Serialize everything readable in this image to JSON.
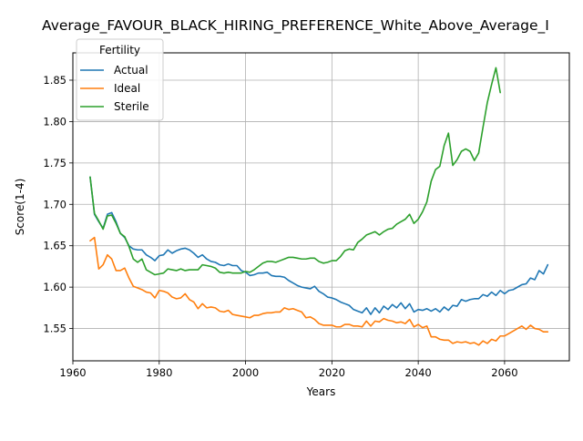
{
  "chart_data": {
    "type": "line",
    "title": "Average_FAVOUR_BLACK_HIRING_PREFERENCE_White_Above_Average_I",
    "xlabel": "Years",
    "ylabel": "Score(1-4)",
    "xlim": [
      1960,
      2075
    ],
    "ylim": [
      1.511,
      1.883
    ],
    "xticks": [
      1960,
      1980,
      2000,
      2020,
      2040,
      2060
    ],
    "yticks": [
      1.55,
      1.6,
      1.65,
      1.7,
      1.75,
      1.8,
      1.85
    ],
    "grid": true,
    "legend": {
      "title": "Fertility",
      "position": "top-left"
    },
    "series": [
      {
        "name": "Actual",
        "color": "#1f77b4",
        "points": [
          [
            1964,
            1.733
          ],
          [
            1965,
            1.688
          ],
          [
            1966,
            1.679
          ],
          [
            1967,
            1.671
          ],
          [
            1968,
            1.688
          ],
          [
            1969,
            1.69
          ],
          [
            1970,
            1.679
          ],
          [
            1971,
            1.665
          ],
          [
            1972,
            1.66
          ],
          [
            1973,
            1.65
          ],
          [
            1974,
            1.646
          ],
          [
            1975,
            1.645
          ],
          [
            1976,
            1.645
          ],
          [
            1977,
            1.639
          ],
          [
            1978,
            1.636
          ],
          [
            1979,
            1.632
          ],
          [
            1980,
            1.638
          ],
          [
            1981,
            1.639
          ],
          [
            1982,
            1.645
          ],
          [
            1983,
            1.641
          ],
          [
            1984,
            1.644
          ],
          [
            1985,
            1.646
          ],
          [
            1986,
            1.647
          ],
          [
            1987,
            1.645
          ],
          [
            1988,
            1.641
          ],
          [
            1989,
            1.636
          ],
          [
            1990,
            1.639
          ],
          [
            1991,
            1.634
          ],
          [
            1992,
            1.631
          ],
          [
            1993,
            1.63
          ],
          [
            1994,
            1.627
          ],
          [
            1995,
            1.626
          ],
          [
            1996,
            1.628
          ],
          [
            1997,
            1.626
          ],
          [
            1998,
            1.626
          ],
          [
            1999,
            1.62
          ],
          [
            2000,
            1.618
          ],
          [
            2001,
            1.614
          ],
          [
            2002,
            1.615
          ],
          [
            2003,
            1.617
          ],
          [
            2004,
            1.617
          ],
          [
            2005,
            1.618
          ],
          [
            2006,
            1.614
          ],
          [
            2007,
            1.613
          ],
          [
            2008,
            1.613
          ],
          [
            2009,
            1.612
          ],
          [
            2010,
            1.608
          ],
          [
            2011,
            1.605
          ],
          [
            2012,
            1.602
          ],
          [
            2013,
            1.6
          ],
          [
            2014,
            1.599
          ],
          [
            2015,
            1.598
          ],
          [
            2016,
            1.601
          ],
          [
            2017,
            1.595
          ],
          [
            2018,
            1.592
          ],
          [
            2019,
            1.588
          ],
          [
            2020,
            1.587
          ],
          [
            2021,
            1.585
          ],
          [
            2022,
            1.582
          ],
          [
            2023,
            1.58
          ],
          [
            2024,
            1.578
          ],
          [
            2025,
            1.573
          ],
          [
            2026,
            1.571
          ],
          [
            2027,
            1.569
          ],
          [
            2028,
            1.575
          ],
          [
            2029,
            1.567
          ],
          [
            2030,
            1.575
          ],
          [
            2031,
            1.569
          ],
          [
            2032,
            1.577
          ],
          [
            2033,
            1.573
          ],
          [
            2034,
            1.579
          ],
          [
            2035,
            1.575
          ],
          [
            2036,
            1.581
          ],
          [
            2037,
            1.574
          ],
          [
            2038,
            1.58
          ],
          [
            2039,
            1.57
          ],
          [
            2040,
            1.573
          ],
          [
            2041,
            1.572
          ],
          [
            2042,
            1.574
          ],
          [
            2043,
            1.571
          ],
          [
            2044,
            1.574
          ],
          [
            2045,
            1.57
          ],
          [
            2046,
            1.576
          ],
          [
            2047,
            1.572
          ],
          [
            2048,
            1.578
          ],
          [
            2049,
            1.577
          ],
          [
            2050,
            1.585
          ],
          [
            2051,
            1.583
          ],
          [
            2052,
            1.585
          ],
          [
            2053,
            1.586
          ],
          [
            2054,
            1.586
          ],
          [
            2055,
            1.591
          ],
          [
            2056,
            1.589
          ],
          [
            2057,
            1.594
          ],
          [
            2058,
            1.59
          ],
          [
            2059,
            1.596
          ],
          [
            2060,
            1.592
          ],
          [
            2061,
            1.596
          ],
          [
            2062,
            1.597
          ],
          [
            2063,
            1.6
          ],
          [
            2064,
            1.603
          ],
          [
            2065,
            1.604
          ],
          [
            2066,
            1.611
          ],
          [
            2067,
            1.609
          ],
          [
            2068,
            1.62
          ],
          [
            2069,
            1.616
          ],
          [
            2070,
            1.627
          ]
        ]
      },
      {
        "name": "Ideal",
        "color": "#ff7f0e",
        "points": [
          [
            1964,
            1.656
          ],
          [
            1965,
            1.66
          ],
          [
            1966,
            1.622
          ],
          [
            1967,
            1.627
          ],
          [
            1968,
            1.639
          ],
          [
            1969,
            1.634
          ],
          [
            1970,
            1.62
          ],
          [
            1971,
            1.62
          ],
          [
            1972,
            1.623
          ],
          [
            1973,
            1.611
          ],
          [
            1974,
            1.601
          ],
          [
            1975,
            1.599
          ],
          [
            1976,
            1.597
          ],
          [
            1977,
            1.594
          ],
          [
            1978,
            1.593
          ],
          [
            1979,
            1.587
          ],
          [
            1980,
            1.596
          ],
          [
            1981,
            1.595
          ],
          [
            1982,
            1.593
          ],
          [
            1983,
            1.588
          ],
          [
            1984,
            1.586
          ],
          [
            1985,
            1.587
          ],
          [
            1986,
            1.592
          ],
          [
            1987,
            1.585
          ],
          [
            1988,
            1.582
          ],
          [
            1989,
            1.574
          ],
          [
            1990,
            1.58
          ],
          [
            1991,
            1.575
          ],
          [
            1992,
            1.576
          ],
          [
            1993,
            1.575
          ],
          [
            1994,
            1.571
          ],
          [
            1995,
            1.57
          ],
          [
            1996,
            1.572
          ],
          [
            1997,
            1.567
          ],
          [
            1998,
            1.566
          ],
          [
            1999,
            1.565
          ],
          [
            2000,
            1.564
          ],
          [
            2001,
            1.563
          ],
          [
            2002,
            1.566
          ],
          [
            2003,
            1.566
          ],
          [
            2004,
            1.568
          ],
          [
            2005,
            1.569
          ],
          [
            2006,
            1.569
          ],
          [
            2007,
            1.57
          ],
          [
            2008,
            1.57
          ],
          [
            2009,
            1.575
          ],
          [
            2010,
            1.573
          ],
          [
            2011,
            1.574
          ],
          [
            2012,
            1.572
          ],
          [
            2013,
            1.57
          ],
          [
            2014,
            1.563
          ],
          [
            2015,
            1.564
          ],
          [
            2016,
            1.561
          ],
          [
            2017,
            1.556
          ],
          [
            2018,
            1.554
          ],
          [
            2019,
            1.554
          ],
          [
            2020,
            1.554
          ],
          [
            2021,
            1.552
          ],
          [
            2022,
            1.552
          ],
          [
            2023,
            1.555
          ],
          [
            2024,
            1.555
          ],
          [
            2025,
            1.553
          ],
          [
            2026,
            1.553
          ],
          [
            2027,
            1.552
          ],
          [
            2028,
            1.559
          ],
          [
            2029,
            1.553
          ],
          [
            2030,
            1.559
          ],
          [
            2031,
            1.558
          ],
          [
            2032,
            1.562
          ],
          [
            2033,
            1.56
          ],
          [
            2034,
            1.559
          ],
          [
            2035,
            1.557
          ],
          [
            2036,
            1.558
          ],
          [
            2037,
            1.556
          ],
          [
            2038,
            1.561
          ],
          [
            2039,
            1.552
          ],
          [
            2040,
            1.555
          ],
          [
            2041,
            1.551
          ],
          [
            2042,
            1.553
          ],
          [
            2043,
            1.54
          ],
          [
            2044,
            1.54
          ],
          [
            2045,
            1.537
          ],
          [
            2046,
            1.536
          ],
          [
            2047,
            1.536
          ],
          [
            2048,
            1.532
          ],
          [
            2049,
            1.534
          ],
          [
            2050,
            1.533
          ],
          [
            2051,
            1.534
          ],
          [
            2052,
            1.532
          ],
          [
            2053,
            1.533
          ],
          [
            2054,
            1.53
          ],
          [
            2055,
            1.535
          ],
          [
            2056,
            1.532
          ],
          [
            2057,
            1.537
          ],
          [
            2058,
            1.535
          ],
          [
            2059,
            1.541
          ],
          [
            2060,
            1.541
          ],
          [
            2061,
            1.544
          ],
          [
            2062,
            1.547
          ],
          [
            2063,
            1.55
          ],
          [
            2064,
            1.553
          ],
          [
            2065,
            1.549
          ],
          [
            2066,
            1.554
          ],
          [
            2067,
            1.55
          ],
          [
            2068,
            1.549
          ],
          [
            2069,
            1.546
          ],
          [
            2070,
            1.546
          ]
        ]
      },
      {
        "name": "Sterile",
        "color": "#2ca02c",
        "points": [
          [
            1964,
            1.733
          ],
          [
            1965,
            1.689
          ],
          [
            1966,
            1.68
          ],
          [
            1967,
            1.67
          ],
          [
            1968,
            1.686
          ],
          [
            1969,
            1.687
          ],
          [
            1970,
            1.677
          ],
          [
            1971,
            1.665
          ],
          [
            1972,
            1.661
          ],
          [
            1973,
            1.649
          ],
          [
            1974,
            1.634
          ],
          [
            1975,
            1.63
          ],
          [
            1976,
            1.634
          ],
          [
            1977,
            1.621
          ],
          [
            1978,
            1.618
          ],
          [
            1979,
            1.615
          ],
          [
            1980,
            1.616
          ],
          [
            1981,
            1.617
          ],
          [
            1982,
            1.622
          ],
          [
            1983,
            1.621
          ],
          [
            1984,
            1.62
          ],
          [
            1985,
            1.622
          ],
          [
            1986,
            1.62
          ],
          [
            1987,
            1.621
          ],
          [
            1988,
            1.621
          ],
          [
            1989,
            1.621
          ],
          [
            1990,
            1.627
          ],
          [
            1991,
            1.626
          ],
          [
            1992,
            1.625
          ],
          [
            1993,
            1.623
          ],
          [
            1994,
            1.618
          ],
          [
            1995,
            1.617
          ],
          [
            1996,
            1.618
          ],
          [
            1997,
            1.617
          ],
          [
            1998,
            1.617
          ],
          [
            1999,
            1.617
          ],
          [
            2000,
            1.619
          ],
          [
            2001,
            1.618
          ],
          [
            2002,
            1.621
          ],
          [
            2003,
            1.625
          ],
          [
            2004,
            1.629
          ],
          [
            2005,
            1.631
          ],
          [
            2006,
            1.631
          ],
          [
            2007,
            1.63
          ],
          [
            2008,
            1.632
          ],
          [
            2009,
            1.634
          ],
          [
            2010,
            1.636
          ],
          [
            2011,
            1.636
          ],
          [
            2012,
            1.635
          ],
          [
            2013,
            1.634
          ],
          [
            2014,
            1.634
          ],
          [
            2015,
            1.635
          ],
          [
            2016,
            1.635
          ],
          [
            2017,
            1.631
          ],
          [
            2018,
            1.629
          ],
          [
            2019,
            1.63
          ],
          [
            2020,
            1.632
          ],
          [
            2021,
            1.632
          ],
          [
            2022,
            1.637
          ],
          [
            2023,
            1.644
          ],
          [
            2024,
            1.646
          ],
          [
            2025,
            1.645
          ],
          [
            2026,
            1.654
          ],
          [
            2027,
            1.658
          ],
          [
            2028,
            1.663
          ],
          [
            2029,
            1.665
          ],
          [
            2030,
            1.667
          ],
          [
            2031,
            1.663
          ],
          [
            2032,
            1.667
          ],
          [
            2033,
            1.67
          ],
          [
            2034,
            1.671
          ],
          [
            2035,
            1.676
          ],
          [
            2036,
            1.679
          ],
          [
            2037,
            1.682
          ],
          [
            2038,
            1.688
          ],
          [
            2039,
            1.677
          ],
          [
            2040,
            1.682
          ],
          [
            2041,
            1.691
          ],
          [
            2042,
            1.703
          ],
          [
            2043,
            1.728
          ],
          [
            2044,
            1.742
          ],
          [
            2045,
            1.746
          ],
          [
            2046,
            1.771
          ],
          [
            2047,
            1.786
          ],
          [
            2048,
            1.747
          ],
          [
            2049,
            1.754
          ],
          [
            2050,
            1.764
          ],
          [
            2051,
            1.767
          ],
          [
            2052,
            1.764
          ],
          [
            2053,
            1.753
          ],
          [
            2054,
            1.762
          ],
          [
            2055,
            1.793
          ],
          [
            2056,
            1.823
          ],
          [
            2057,
            1.845
          ],
          [
            2058,
            1.865
          ],
          [
            2059,
            1.835
          ]
        ]
      }
    ]
  }
}
